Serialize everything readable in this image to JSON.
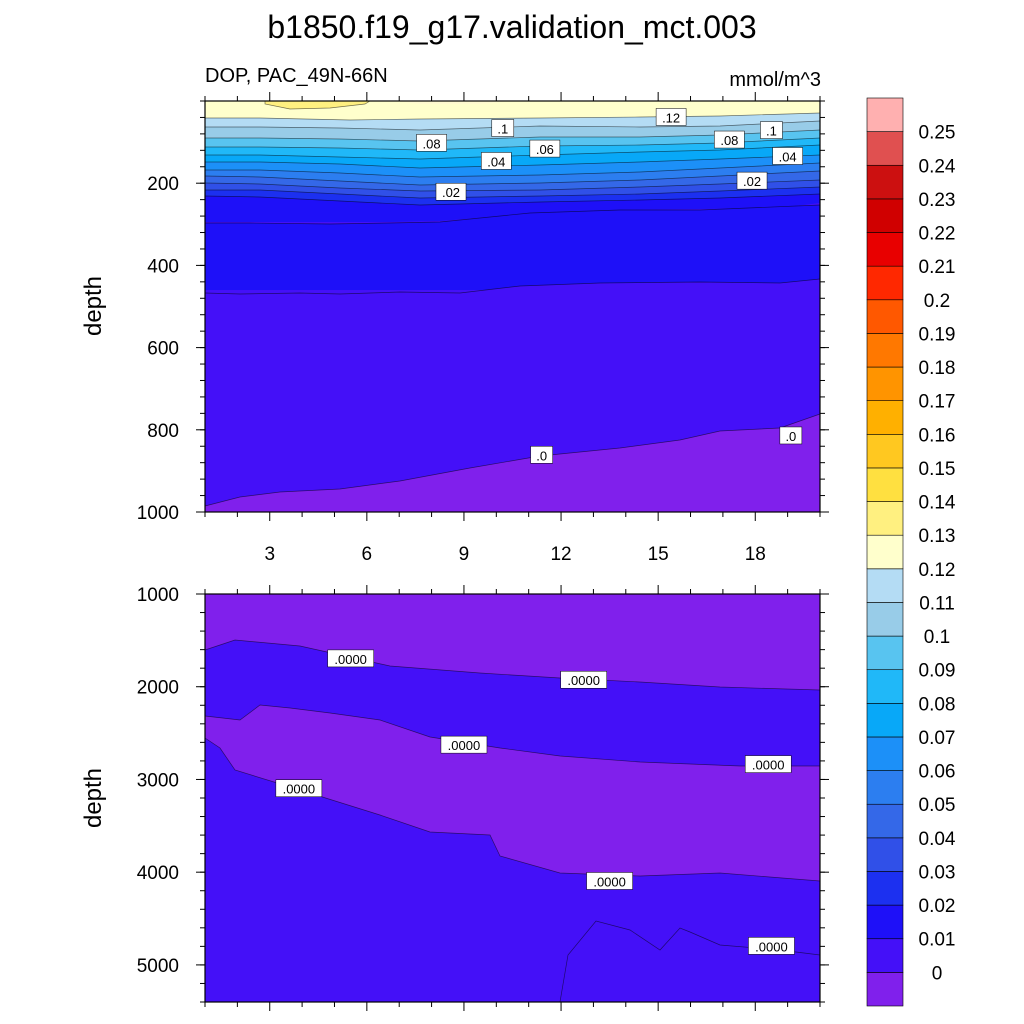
{
  "chart_data": {
    "type": "contour",
    "title": "b1850.f19_g17.validation_mct.003",
    "variable_label": "DOP, PAC_49N-66N",
    "units_label": "mmol/m^3",
    "colorbar": {
      "levels": [
        "0",
        "0.01",
        "0.02",
        "0.03",
        "0.04",
        "0.05",
        "0.06",
        "0.07",
        "0.08",
        "0.09",
        "0.1",
        "0.11",
        "0.12",
        "0.13",
        "0.14",
        "0.15",
        "0.16",
        "0.17",
        "0.18",
        "0.19",
        "0.2",
        "0.21",
        "0.22",
        "0.23",
        "0.24",
        "0.25"
      ],
      "colors": [
        "#8020ec",
        "#4410f8",
        "#1e10f8",
        "#1c30f0",
        "#3050e8",
        "#3468e8",
        "#2c7ef0",
        "#1c90f8",
        "#08a8f8",
        "#20b8f8",
        "#58c4f0",
        "#98cce8",
        "#b4dcf4",
        "#ffffcc",
        "#fff080",
        "#ffe040",
        "#ffc820",
        "#ffb000",
        "#ff9400",
        "#ff7800",
        "#ff5800",
        "#ff2800",
        "#e80000",
        "#d00000",
        "#cc1010",
        "#e05050",
        "#ffb0b0"
      ]
    },
    "panels": [
      {
        "name": "upper",
        "ylabel": "depth",
        "ylim": [
          0,
          1000
        ],
        "xlim": [
          1,
          20
        ],
        "xticks": [
          "3",
          "6",
          "9",
          "12",
          "15",
          "18"
        ],
        "yticks": [
          "200",
          "400",
          "600",
          "800",
          "1000"
        ],
        "contour_labels": [
          {
            "text": ".12",
            "x": 15.4,
            "y": 40
          },
          {
            "text": ".1",
            "x": 10.2,
            "y": 67
          },
          {
            "text": ".1",
            "x": 18.5,
            "y": 72
          },
          {
            "text": ".08",
            "x": 8.0,
            "y": 103
          },
          {
            "text": ".08",
            "x": 17.2,
            "y": 95
          },
          {
            "text": ".06",
            "x": 11.5,
            "y": 117
          },
          {
            "text": ".04",
            "x": 10.0,
            "y": 147
          },
          {
            "text": ".04",
            "x": 19.0,
            "y": 135
          },
          {
            "text": ".02",
            "x": 8.6,
            "y": 222
          },
          {
            "text": ".02",
            "x": 17.9,
            "y": 195
          },
          {
            "text": ".0",
            "x": 11.4,
            "y": 862
          },
          {
            "text": ".0",
            "x": 19.1,
            "y": 815
          }
        ]
      },
      {
        "name": "lower",
        "ylabel": "depth",
        "ylim": [
          1000,
          5400
        ],
        "xlim": [
          1,
          20
        ],
        "yticks": [
          "1000",
          "2000",
          "3000",
          "4000",
          "5000"
        ],
        "contour_labels": [
          {
            "text": ".0000",
            "x": 5.5,
            "y": 1700
          },
          {
            "text": ".0000",
            "x": 12.7,
            "y": 1930
          },
          {
            "text": ".0000",
            "x": 9.0,
            "y": 2630
          },
          {
            "text": ".0000",
            "x": 18.4,
            "y": 2840
          },
          {
            "text": ".0000",
            "x": 3.9,
            "y": 3100
          },
          {
            "text": ".0000",
            "x": 13.5,
            "y": 4100
          },
          {
            "text": ".0000",
            "x": 18.5,
            "y": 4800
          }
        ]
      }
    ]
  }
}
